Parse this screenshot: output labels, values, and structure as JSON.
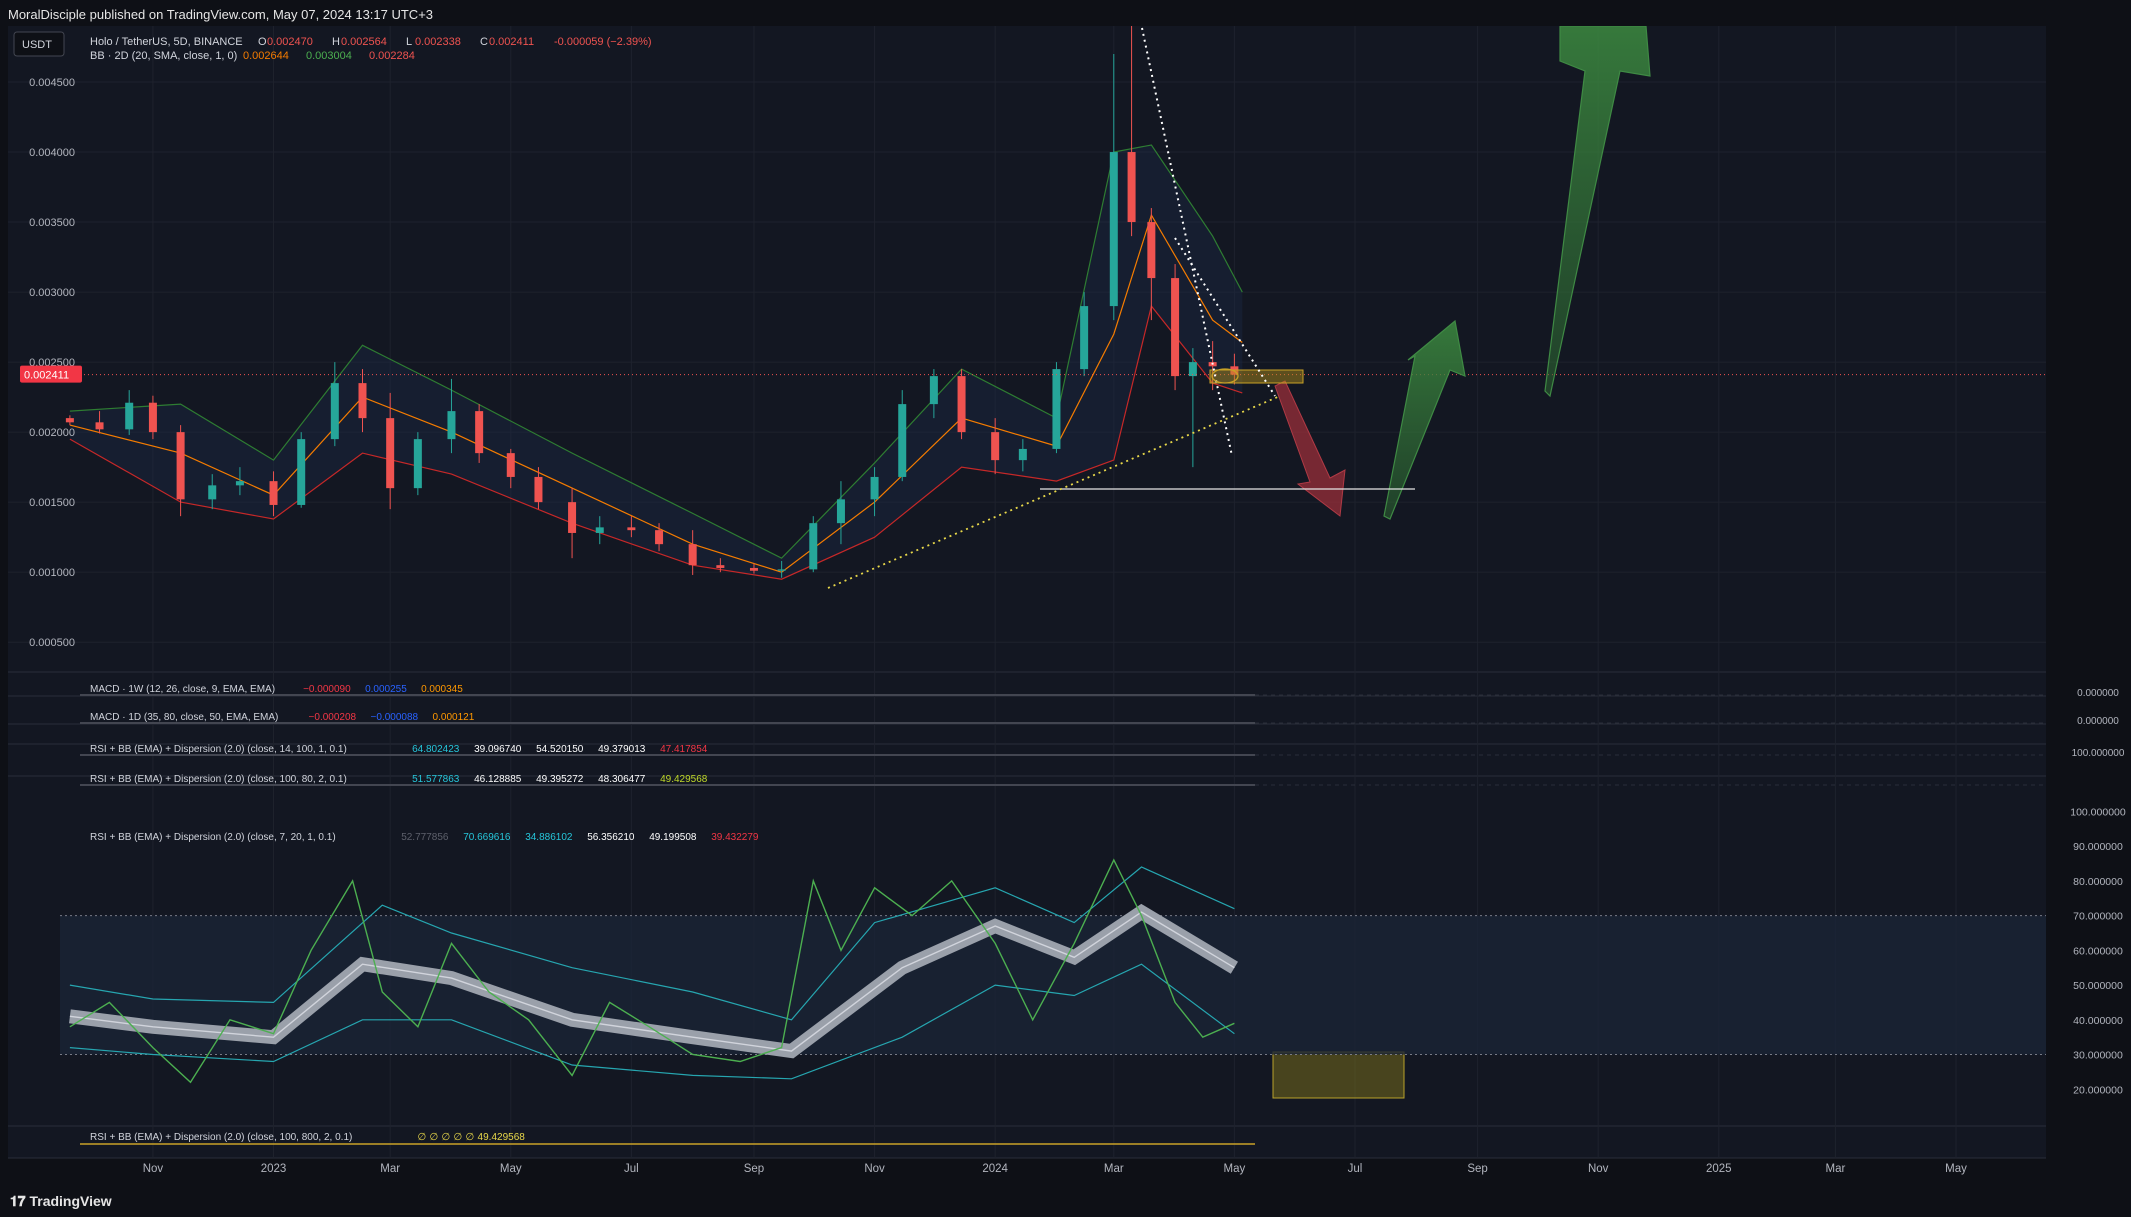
{
  "header": {
    "published": "MoralDisciple published on TradingView.com, May 07, 2024 13:17 UTC+3"
  },
  "footer": {
    "brand": "TradingView"
  },
  "colors": {
    "bg": "#0e1016",
    "panel": "#131722",
    "up": "#26a69a",
    "down": "#ef5350",
    "bb_upper": "#2e7d32",
    "bb_mid": "#f57c00",
    "bb_lower": "#c62828",
    "accent_yellow": "#f0d000"
  },
  "chart_data": [
    {
      "type": "candlestick",
      "currency_button": "USDT",
      "legend_title": "Holo / TetherUS, 5D, BINANCE",
      "ohlc": {
        "o_label": "O",
        "o": "0.002470",
        "h_label": "H",
        "h": "0.002564",
        "l_label": "L",
        "l": "0.002338",
        "c_label": "C",
        "c": "0.002411",
        "change": "-0.000059 (−2.39%)"
      },
      "bb": {
        "label": "BB · 2D (20, SMA, close, 1, 0)",
        "mid": "0.002644",
        "upper": "0.003004",
        "lower": "0.002284"
      },
      "last_price": "0.002411",
      "last_value": 0.002411,
      "y_ticks": [
        "0.004500",
        "0.004000",
        "0.003500",
        "0.003000",
        "0.002500",
        "0.002000",
        "0.001500",
        "0.001000",
        "0.000500"
      ],
      "y_tick_values": [
        0.0045,
        0.004,
        0.0035,
        0.003,
        0.0025,
        0.002,
        0.0015,
        0.001,
        0.0005
      ],
      "ylim": [
        0.00033,
        0.0049
      ],
      "x_ticks": [
        "Nov",
        "2023",
        "Mar",
        "May",
        "Jul",
        "Sep",
        "Nov",
        "2024",
        "Mar",
        "May",
        "Jul",
        "Sep",
        "Nov",
        "2025",
        "Mar",
        "May"
      ],
      "x_tick_dates": [
        "2022-11-01",
        "2023-01-01",
        "2023-03-01",
        "2023-05-01",
        "2023-07-01",
        "2023-09-01",
        "2023-11-01",
        "2024-01-01",
        "2024-03-01",
        "2024-05-01",
        "2024-07-01",
        "2024-09-01",
        "2024-11-01",
        "2025-01-01",
        "2025-03-01",
        "2025-05-01"
      ],
      "x_range": [
        "2022-09-15",
        "2025-06-15"
      ],
      "candles": [
        [
          "2022-09-20",
          0.0021,
          0.00212,
          0.00205,
          0.00207
        ],
        [
          "2022-10-05",
          0.00207,
          0.00215,
          0.00199,
          0.00202
        ],
        [
          "2022-10-20",
          0.00202,
          0.0023,
          0.00198,
          0.00221
        ],
        [
          "2022-11-01",
          0.00221,
          0.00226,
          0.00195,
          0.002
        ],
        [
          "2022-11-15",
          0.002,
          0.00205,
          0.0014,
          0.00152
        ],
        [
          "2022-12-01",
          0.00152,
          0.0017,
          0.00145,
          0.00162
        ],
        [
          "2022-12-15",
          0.00162,
          0.00175,
          0.00155,
          0.00165
        ],
        [
          "2023-01-01",
          0.00165,
          0.00172,
          0.0014,
          0.00148
        ],
        [
          "2023-01-15",
          0.00148,
          0.002,
          0.00146,
          0.00195
        ],
        [
          "2023-02-01",
          0.00195,
          0.0025,
          0.0019,
          0.00235
        ],
        [
          "2023-02-15",
          0.00235,
          0.00245,
          0.002,
          0.0021
        ],
        [
          "2023-03-01",
          0.0021,
          0.00228,
          0.00145,
          0.0016
        ],
        [
          "2023-03-15",
          0.0016,
          0.002,
          0.00155,
          0.00195
        ],
        [
          "2023-04-01",
          0.00195,
          0.00238,
          0.00185,
          0.00215
        ],
        [
          "2023-04-15",
          0.00215,
          0.0022,
          0.00178,
          0.00185
        ],
        [
          "2023-05-01",
          0.00185,
          0.00188,
          0.0016,
          0.00168
        ],
        [
          "2023-05-15",
          0.00168,
          0.00175,
          0.00145,
          0.0015
        ],
        [
          "2023-06-01",
          0.0015,
          0.0016,
          0.0011,
          0.00128
        ],
        [
          "2023-06-15",
          0.00128,
          0.0014,
          0.0012,
          0.00132
        ],
        [
          "2023-07-01",
          0.00132,
          0.0014,
          0.00125,
          0.0013
        ],
        [
          "2023-07-15",
          0.0013,
          0.00135,
          0.00115,
          0.0012
        ],
        [
          "2023-08-01",
          0.0012,
          0.0013,
          0.00098,
          0.00105
        ],
        [
          "2023-08-15",
          0.00105,
          0.0011,
          0.001,
          0.00103
        ],
        [
          "2023-09-01",
          0.00103,
          0.00106,
          0.00099,
          0.00101
        ],
        [
          "2023-09-15",
          0.00101,
          0.00108,
          0.00096,
          0.00102
        ],
        [
          "2023-10-01",
          0.00102,
          0.0014,
          0.001,
          0.00135
        ],
        [
          "2023-10-15",
          0.00135,
          0.00165,
          0.0012,
          0.00152
        ],
        [
          "2023-11-01",
          0.00152,
          0.00175,
          0.0014,
          0.00168
        ],
        [
          "2023-11-15",
          0.00168,
          0.0023,
          0.00165,
          0.0022
        ],
        [
          "2023-12-01",
          0.0022,
          0.00245,
          0.0021,
          0.0024
        ],
        [
          "2023-12-15",
          0.0024,
          0.00245,
          0.00195,
          0.002
        ],
        [
          "2024-01-01",
          0.002,
          0.0021,
          0.0017,
          0.0018
        ],
        [
          "2024-01-15",
          0.0018,
          0.00195,
          0.00172,
          0.00188
        ],
        [
          "2024-02-01",
          0.00188,
          0.0025,
          0.00185,
          0.00245
        ],
        [
          "2024-02-15",
          0.00245,
          0.003,
          0.0024,
          0.0029
        ],
        [
          "2024-03-01",
          0.0029,
          0.0047,
          0.0028,
          0.004
        ],
        [
          "2024-03-10",
          0.004,
          0.005,
          0.0034,
          0.0035
        ],
        [
          "2024-03-20",
          0.0035,
          0.0036,
          0.0028,
          0.0031
        ],
        [
          "2024-04-01",
          0.0031,
          0.0032,
          0.0023,
          0.0024
        ],
        [
          "2024-04-10",
          0.0024,
          0.0026,
          0.00175,
          0.0025
        ],
        [
          "2024-04-20",
          0.0025,
          0.00265,
          0.0023,
          0.00247
        ],
        [
          "2024-05-01",
          0.00247,
          0.00256,
          0.00234,
          0.00241
        ]
      ],
      "bb_upper_series": [
        [
          "2022-09-20",
          0.00215
        ],
        [
          "2022-11-15",
          0.0022
        ],
        [
          "2023-01-01",
          0.0018
        ],
        [
          "2023-02-15",
          0.00262
        ],
        [
          "2023-04-01",
          0.0023
        ],
        [
          "2023-06-01",
          0.00185
        ],
        [
          "2023-08-01",
          0.00142
        ],
        [
          "2023-09-15",
          0.0011
        ],
        [
          "2023-11-01",
          0.00178
        ],
        [
          "2023-12-15",
          0.00245
        ],
        [
          "2024-02-01",
          0.0021
        ],
        [
          "2024-03-01",
          0.004
        ],
        [
          "2024-03-20",
          0.00405
        ],
        [
          "2024-04-20",
          0.0034
        ],
        [
          "2024-05-05",
          0.003
        ]
      ],
      "bb_mid_series": [
        [
          "2022-09-20",
          0.00205
        ],
        [
          "2022-11-15",
          0.00185
        ],
        [
          "2023-01-01",
          0.00155
        ],
        [
          "2023-02-15",
          0.00225
        ],
        [
          "2023-04-01",
          0.002
        ],
        [
          "2023-06-01",
          0.0016
        ],
        [
          "2023-08-01",
          0.0012
        ],
        [
          "2023-09-15",
          0.001
        ],
        [
          "2023-11-01",
          0.0015
        ],
        [
          "2023-12-15",
          0.0021
        ],
        [
          "2024-02-01",
          0.0019
        ],
        [
          "2024-03-01",
          0.0027
        ],
        [
          "2024-03-20",
          0.00355
        ],
        [
          "2024-04-20",
          0.0028
        ],
        [
          "2024-05-05",
          0.00264
        ]
      ],
      "bb_lower_series": [
        [
          "2022-09-20",
          0.00195
        ],
        [
          "2022-11-15",
          0.0015
        ],
        [
          "2023-01-01",
          0.00138
        ],
        [
          "2023-02-15",
          0.00185
        ],
        [
          "2023-04-01",
          0.0017
        ],
        [
          "2023-06-01",
          0.00135
        ],
        [
          "2023-08-01",
          0.00105
        ],
        [
          "2023-09-15",
          0.00095
        ],
        [
          "2023-11-01",
          0.00125
        ],
        [
          "2023-12-15",
          0.00175
        ],
        [
          "2024-02-01",
          0.00165
        ],
        [
          "2024-03-01",
          0.0018
        ],
        [
          "2024-03-20",
          0.0029
        ],
        [
          "2024-04-20",
          0.00235
        ],
        [
          "2024-05-05",
          0.00228
        ]
      ]
    },
    {
      "type": "line",
      "label": "MACD · 1W (12, 26, close, 9, EMA, EMA)",
      "values": [
        "−0.000090",
        "0.000255",
        "0.000345"
      ],
      "axis_value": "0.000000"
    },
    {
      "type": "line",
      "label": "MACD · 1D (35, 80, close, 50, EMA, EMA)",
      "values": [
        "−0.000208",
        "−0.000088",
        "0.000121"
      ],
      "axis_value": "0.000000"
    },
    {
      "type": "line",
      "label": "RSI + BB (EMA) + Dispersion (2.0) (close, 14, 100, 1, 0.1)",
      "values": [
        "64.802423",
        "39.096740",
        "54.520150",
        "49.379013",
        "47.417854"
      ],
      "axis_value": "100.000000"
    },
    {
      "type": "line",
      "label": "RSI + BB (EMA) + Dispersion (2.0) (close, 100, 80, 2, 0.1)",
      "values": [
        "51.577863",
        "46.128885",
        "49.395272",
        "48.306477",
        "49.429568"
      ]
    },
    {
      "type": "line",
      "label": "RSI + BB (EMA) + Dispersion (2.0) (close, 7, 20, 1, 0.1)",
      "values": [
        "52.777856",
        "70.669616",
        "34.886102",
        "56.356210",
        "49.199508",
        "39.432279"
      ],
      "y_ticks": [
        "100.000000",
        "90.000000",
        "80.000000",
        "70.000000",
        "60.000000",
        "50.000000",
        "40.000000",
        "30.000000",
        "20.000000"
      ],
      "y_tick_values": [
        100,
        90,
        80,
        70,
        60,
        50,
        40,
        30,
        20
      ],
      "ylim": [
        10,
        103
      ],
      "rsi_series": [
        [
          "2022-09-20",
          38
        ],
        [
          "2022-10-10",
          45
        ],
        [
          "2022-11-01",
          32
        ],
        [
          "2022-11-20",
          22
        ],
        [
          "2022-12-10",
          40
        ],
        [
          "2023-01-01",
          36
        ],
        [
          "2023-01-20",
          60
        ],
        [
          "2023-02-10",
          80
        ],
        [
          "2023-02-25",
          48
        ],
        [
          "2023-03-15",
          38
        ],
        [
          "2023-04-01",
          62
        ],
        [
          "2023-04-20",
          48
        ],
        [
          "2023-05-10",
          40
        ],
        [
          "2023-06-01",
          24
        ],
        [
          "2023-06-20",
          45
        ],
        [
          "2023-07-10",
          38
        ],
        [
          "2023-08-01",
          30
        ],
        [
          "2023-08-25",
          28
        ],
        [
          "2023-09-15",
          32
        ],
        [
          "2023-10-01",
          80
        ],
        [
          "2023-10-15",
          60
        ],
        [
          "2023-11-01",
          78
        ],
        [
          "2023-11-20",
          70
        ],
        [
          "2023-12-10",
          80
        ],
        [
          "2024-01-01",
          62
        ],
        [
          "2024-01-20",
          40
        ],
        [
          "2024-02-10",
          62
        ],
        [
          "2024-03-01",
          86
        ],
        [
          "2024-03-15",
          70
        ],
        [
          "2024-04-01",
          45
        ],
        [
          "2024-04-15",
          35
        ],
        [
          "2024-05-01",
          39
        ]
      ],
      "upper_series": [
        [
          "2022-09-20",
          50
        ],
        [
          "2022-11-01",
          46
        ],
        [
          "2023-01-01",
          45
        ],
        [
          "2023-02-25",
          73
        ],
        [
          "2023-04-01",
          65
        ],
        [
          "2023-06-01",
          55
        ],
        [
          "2023-08-01",
          48
        ],
        [
          "2023-09-20",
          40
        ],
        [
          "2023-11-01",
          68
        ],
        [
          "2024-01-01",
          78
        ],
        [
          "2024-02-10",
          68
        ],
        [
          "2024-03-15",
          84
        ],
        [
          "2024-05-01",
          72
        ]
      ],
      "basis_series": [
        [
          "2022-09-20",
          41
        ],
        [
          "2022-11-01",
          38
        ],
        [
          "2023-01-01",
          35
        ],
        [
          "2023-02-15",
          56
        ],
        [
          "2023-04-01",
          52
        ],
        [
          "2023-06-01",
          40
        ],
        [
          "2023-08-01",
          35
        ],
        [
          "2023-09-20",
          31
        ],
        [
          "2023-11-15",
          55
        ],
        [
          "2024-01-01",
          67
        ],
        [
          "2024-02-10",
          58
        ],
        [
          "2024-03-15",
          71
        ],
        [
          "2024-05-01",
          55
        ]
      ],
      "lower_series": [
        [
          "2022-09-20",
          32
        ],
        [
          "2022-11-01",
          30
        ],
        [
          "2023-01-01",
          28
        ],
        [
          "2023-02-15",
          40
        ],
        [
          "2023-04-01",
          40
        ],
        [
          "2023-06-01",
          27
        ],
        [
          "2023-08-01",
          24
        ],
        [
          "2023-09-20",
          23
        ],
        [
          "2023-11-15",
          35
        ],
        [
          "2024-01-01",
          50
        ],
        [
          "2024-02-10",
          47
        ],
        [
          "2024-03-15",
          56
        ],
        [
          "2024-05-01",
          36
        ]
      ]
    },
    {
      "type": "line",
      "label": "RSI + BB (EMA) + Dispersion (2.0) (close, 100, 800, 2, 0.1)",
      "values": [
        "∅",
        "∅",
        "∅",
        "∅",
        "∅",
        "49.429568"
      ]
    }
  ]
}
